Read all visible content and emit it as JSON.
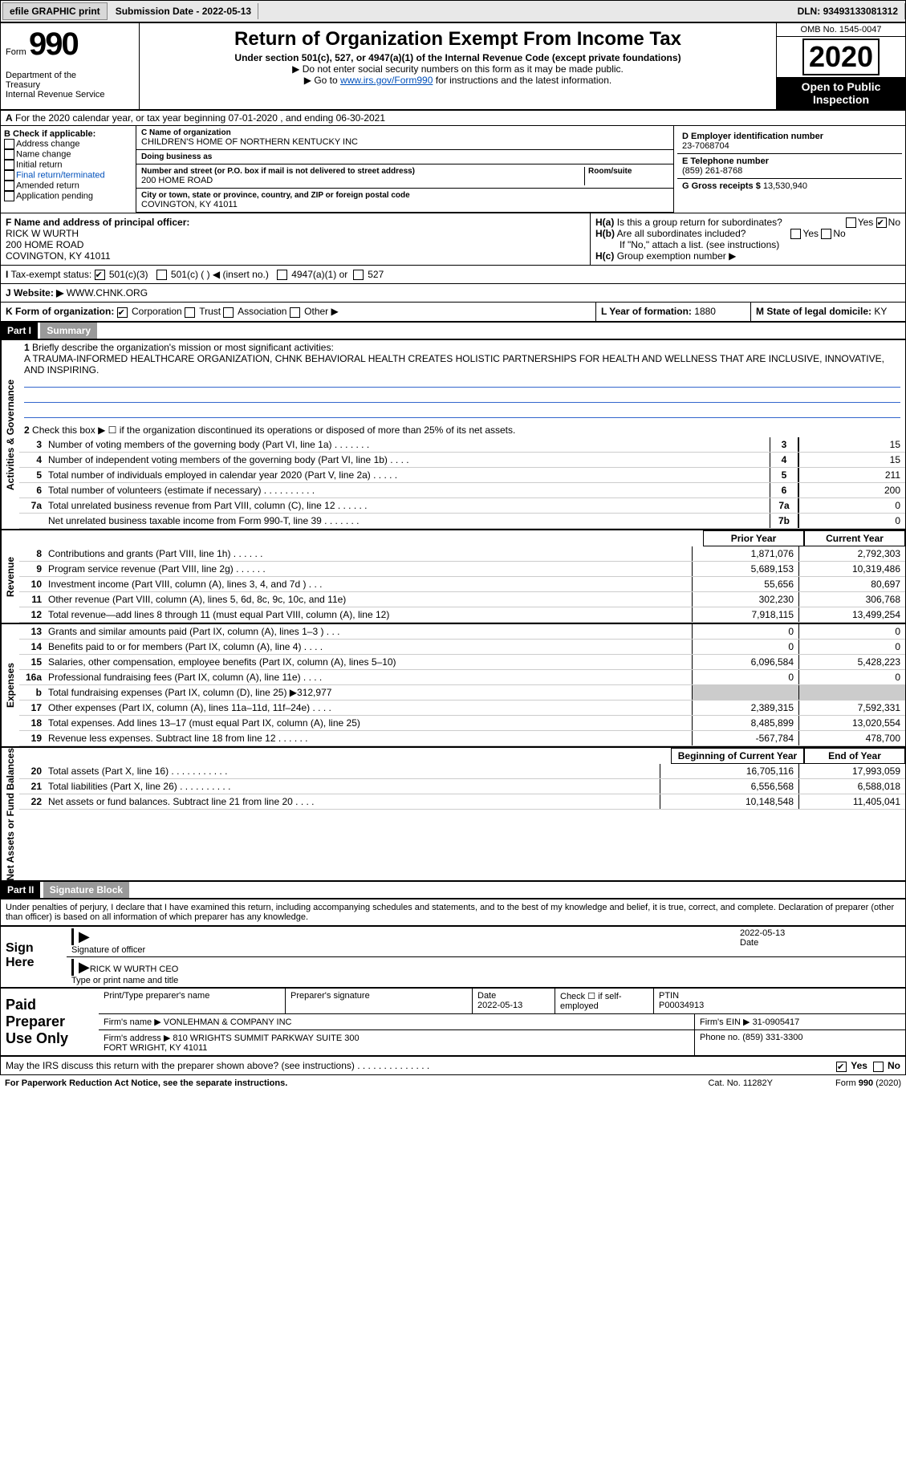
{
  "topbar": {
    "efile": "efile GRAPHIC print",
    "submission_label": "Submission Date - ",
    "submission_date": "2022-05-13",
    "dln_label": "DLN: ",
    "dln": "93493133081312"
  },
  "header": {
    "form_label": "Form",
    "form_no": "990",
    "title": "Return of Organization Exempt From Income Tax",
    "subtitle": "Under section 501(c), 527, or 4947(a)(1) of the Internal Revenue Code (except private foundations)",
    "note1": "▶ Do not enter social security numbers on this form as it may be made public.",
    "note2_pre": "▶ Go to ",
    "note2_link": "www.irs.gov/Form990",
    "note2_post": " for instructions and the latest information.",
    "dept": "Department of the Treasury\nInternal Revenue Service",
    "omb": "OMB No. 1545-0047",
    "year": "2020",
    "open": "Open to Public Inspection"
  },
  "rowA": "For the 2020 calendar year, or tax year beginning 07-01-2020    , and ending 06-30-2021",
  "B": {
    "label": "B Check if applicable:",
    "items": [
      "Address change",
      "Name change",
      "Initial return",
      "Final return/terminated",
      "Amended return",
      "Application pending"
    ]
  },
  "C": {
    "name_label": "C Name of organization",
    "name": "CHILDREN'S HOME OF NORTHERN KENTUCKY INC",
    "dba_label": "Doing business as",
    "dba": "",
    "street_label": "Number and street (or P.O. box if mail is not delivered to street address)",
    "room_label": "Room/suite",
    "street": "200 HOME ROAD",
    "city_label": "City or town, state or province, country, and ZIP or foreign postal code",
    "city": "COVINGTON, KY  41011"
  },
  "D": {
    "label": "D Employer identification number",
    "value": "23-7068704"
  },
  "E": {
    "label": "E Telephone number",
    "value": "(859) 261-8768"
  },
  "G": {
    "label": "G Gross receipts $",
    "value": "13,530,940"
  },
  "F": {
    "label": "F  Name and address of principal officer:",
    "name": "RICK W WURTH",
    "street": "200 HOME ROAD",
    "city": "COVINGTON, KY  41011"
  },
  "H": {
    "a": "Is this a group return for subordinates?",
    "a_yes": "Yes",
    "a_no": "No",
    "b": "Are all subordinates included?",
    "note": "If \"No,\" attach a list. (see instructions)",
    "c": "Group exemption number ▶"
  },
  "I": {
    "label": "Tax-exempt status:",
    "opts": [
      "501(c)(3)",
      "501(c) (  ) ◀ (insert no.)",
      "4947(a)(1) or",
      "527"
    ]
  },
  "J": {
    "label": "Website: ▶",
    "value": "WWW.CHNK.ORG"
  },
  "K": {
    "label": "K Form of organization:",
    "opts": [
      "Corporation",
      "Trust",
      "Association",
      "Other ▶"
    ]
  },
  "L": {
    "label": "L Year of formation:",
    "value": "1880"
  },
  "M": {
    "label": "M State of legal domicile:",
    "value": "KY"
  },
  "partI": {
    "tag": "Part I",
    "title": "Summary"
  },
  "mission_label": "Briefly describe the organization's mission or most significant activities:",
  "mission": "A TRAUMA-INFORMED HEALTHCARE ORGANIZATION, CHNK BEHAVIORAL HEALTH CREATES HOLISTIC PARTNERSHIPS FOR HEALTH AND WELLNESS THAT ARE INCLUSIVE, INNOVATIVE, AND INSPIRING.",
  "line2": "Check this box ▶ ☐  if the organization discontinued its operations or disposed of more than 25% of its net assets.",
  "gov_lines": [
    {
      "n": "3",
      "t": "Number of voting members of the governing body (Part VI, line 1a)  .    .    .    .    .    .    .",
      "c": "3",
      "v": "15"
    },
    {
      "n": "4",
      "t": "Number of independent voting members of the governing body (Part VI, line 1b)  .    .    .    .",
      "c": "4",
      "v": "15"
    },
    {
      "n": "5",
      "t": "Total number of individuals employed in calendar year 2020 (Part V, line 2a)  .    .    .    .    .",
      "c": "5",
      "v": "211"
    },
    {
      "n": "6",
      "t": "Total number of volunteers (estimate if necessary)  .    .    .    .    .    .    .    .    .    .",
      "c": "6",
      "v": "200"
    },
    {
      "n": "7a",
      "t": "Total unrelated business revenue from Part VIII, column (C), line 12  .    .    .    .    .    .",
      "c": "7a",
      "v": "0"
    },
    {
      "n": "",
      "t": "Net unrelated business taxable income from Form 990-T, line 39  .    .    .    .    .    .    .",
      "c": "7b",
      "v": "0"
    }
  ],
  "col_headers": {
    "prior": "Prior Year",
    "current": "Current Year"
  },
  "rev_lines": [
    {
      "n": "8",
      "t": "Contributions and grants (Part VIII, line 1h)  .    .    .    .    .    .",
      "p": "1,871,076",
      "c": "2,792,303"
    },
    {
      "n": "9",
      "t": "Program service revenue (Part VIII, line 2g)  .    .    .    .    .    .",
      "p": "5,689,153",
      "c": "10,319,486"
    },
    {
      "n": "10",
      "t": "Investment income (Part VIII, column (A), lines 3, 4, and 7d )  .    .    .",
      "p": "55,656",
      "c": "80,697"
    },
    {
      "n": "11",
      "t": "Other revenue (Part VIII, column (A), lines 5, 6d, 8c, 9c, 10c, and 11e)",
      "p": "302,230",
      "c": "306,768"
    },
    {
      "n": "12",
      "t": "Total revenue—add lines 8 through 11 (must equal Part VIII, column (A), line 12)",
      "p": "7,918,115",
      "c": "13,499,254"
    }
  ],
  "exp_lines": [
    {
      "n": "13",
      "t": "Grants and similar amounts paid (Part IX, column (A), lines 1–3 )  .    .    .",
      "p": "0",
      "c": "0"
    },
    {
      "n": "14",
      "t": "Benefits paid to or for members (Part IX, column (A), line 4)  .    .    .    .",
      "p": "0",
      "c": "0"
    },
    {
      "n": "15",
      "t": "Salaries, other compensation, employee benefits (Part IX, column (A), lines 5–10)",
      "p": "6,096,584",
      "c": "5,428,223"
    },
    {
      "n": "16a",
      "t": "Professional fundraising fees (Part IX, column (A), line 11e)  .    .    .    .",
      "p": "0",
      "c": "0"
    },
    {
      "n": "b",
      "t": "Total fundraising expenses (Part IX, column (D), line 25) ▶312,977",
      "p": "",
      "c": "",
      "gray": true
    },
    {
      "n": "17",
      "t": "Other expenses (Part IX, column (A), lines 11a–11d, 11f–24e)  .    .    .    .",
      "p": "2,389,315",
      "c": "7,592,331"
    },
    {
      "n": "18",
      "t": "Total expenses. Add lines 13–17 (must equal Part IX, column (A), line 25)",
      "p": "8,485,899",
      "c": "13,020,554"
    },
    {
      "n": "19",
      "t": "Revenue less expenses. Subtract line 18 from line 12  .    .    .    .    .    .",
      "p": "-567,784",
      "c": "478,700"
    }
  ],
  "bal_headers": {
    "begin": "Beginning of Current Year",
    "end": "End of Year"
  },
  "bal_lines": [
    {
      "n": "20",
      "t": "Total assets (Part X, line 16)  .    .    .    .    .    .    .    .    .    .    .",
      "p": "16,705,116",
      "c": "17,993,059"
    },
    {
      "n": "21",
      "t": "Total liabilities (Part X, line 26)  .    .    .    .    .    .    .    .    .    .",
      "p": "6,556,568",
      "c": "6,588,018"
    },
    {
      "n": "22",
      "t": "Net assets or fund balances. Subtract line 21 from line 20  .    .    .    .",
      "p": "10,148,548",
      "c": "11,405,041"
    }
  ],
  "partII": {
    "tag": "Part II",
    "title": "Signature Block"
  },
  "penalties": "Under penalties of perjury, I declare that I have examined this return, including accompanying schedules and statements, and to the best of my knowledge and belief, it is true, correct, and complete. Declaration of preparer (other than officer) is based on all information of which preparer has any knowledge.",
  "sign": {
    "left": "Sign Here",
    "sig_label": "Signature of officer",
    "date_label": "Date",
    "date": "2022-05-13",
    "name": "RICK W WURTH  CEO",
    "name_label": "Type or print name and title"
  },
  "prep": {
    "left": "Paid Preparer Use Only",
    "h1": "Print/Type preparer's name",
    "h2": "Preparer's signature",
    "h3": "Date",
    "date": "2022-05-13",
    "h4": "Check ☐ if self-employed",
    "h5": "PTIN",
    "ptin": "P00034913",
    "firm_label": "Firm's name    ▶",
    "firm": "VONLEHMAN & COMPANY INC",
    "ein_label": "Firm's EIN ▶",
    "ein": "31-0905417",
    "addr_label": "Firm's address ▶",
    "addr": "810 WRIGHTS SUMMIT PARKWAY SUITE 300\nFORT WRIGHT, KY  41011",
    "phone_label": "Phone no.",
    "phone": "(859) 331-3300"
  },
  "irs_discuss": "May the IRS discuss this return with the preparer shown above? (see instructions)  .    .    .    .    .    .    .    .    .    .    .    .    .    .",
  "footer": {
    "left": "For Paperwork Reduction Act Notice, see the separate instructions.",
    "mid": "Cat. No. 11282Y",
    "right": "Form 990 (2020)"
  },
  "side_tabs": {
    "gov": "Activities & Governance",
    "rev": "Revenue",
    "exp": "Expenses",
    "bal": "Net Assets or Fund Balances"
  }
}
